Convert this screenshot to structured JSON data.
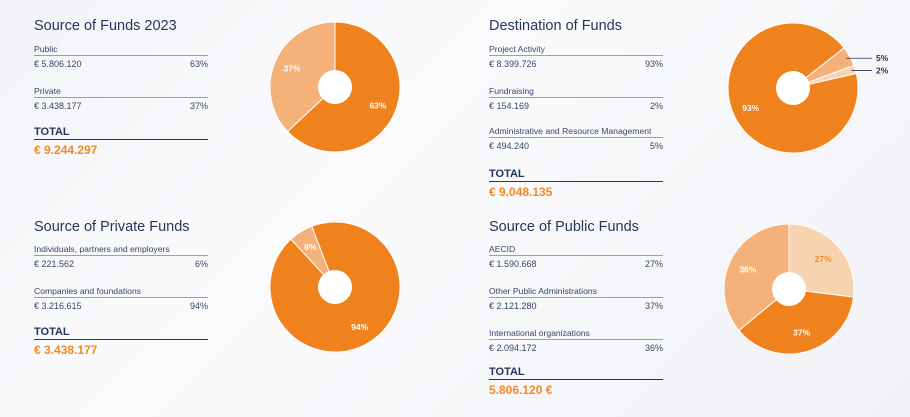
{
  "colors": {
    "dark": "#f0821e",
    "mid": "#f4b27a",
    "light": "#f8d3b0",
    "text_dark": "#24375a",
    "accent": "#f08a24"
  },
  "panels": [
    {
      "title": "Source of Funds 2023",
      "rows": [
        {
          "label": "Public",
          "amount": "€ 5.806.120",
          "pct": "63%"
        },
        {
          "label": "Private",
          "amount": "€ 3.438.177",
          "pct": "37%"
        }
      ],
      "total_label": "TOTAL",
      "total_value": "€ 9.244.297"
    },
    {
      "title": "Destination of  Funds",
      "rows": [
        {
          "label": "Project Activity",
          "amount": "€ 8.399.726",
          "pct": "93%"
        },
        {
          "label": "Fundraising",
          "amount": "€ 154.169",
          "pct": "2%"
        },
        {
          "label": " Administrative and Resource Management",
          "amount": "€ 494.240",
          "pct": "5%"
        }
      ],
      "total_label": "TOTAL",
      "total_value": "€ 9.048.135"
    },
    {
      "title": "Source of Private Funds",
      "rows": [
        {
          "label": "Individuals, partners and employers",
          "amount": "€ 221.562",
          "pct": "6%"
        },
        {
          "label": "Companies and foundations",
          "amount": "€ 3.216.615",
          "pct": "94%"
        }
      ],
      "total_label": "TOTAL",
      "total_value": "€ 3.438.177"
    },
    {
      "title": "Source of Public Funds",
      "rows": [
        {
          "label": "AECID",
          "amount": "€ 1.590.668",
          "pct": "27%"
        },
        {
          "label": "Other Public Administrations",
          "amount": "€ 2.121.280",
          "pct": "37%"
        },
        {
          "label": "International organizations",
          "amount": "€ 2.094.172",
          "pct": "36%"
        }
      ],
      "total_label": "TOTAL",
      "total_value": "5.806.120 €"
    }
  ],
  "chart_data": [
    {
      "type": "pie",
      "title": "Source of Funds 2023",
      "slices": [
        {
          "label": "63%",
          "value": 63,
          "color": "#f0821e"
        },
        {
          "label": "37%",
          "value": 37,
          "color": "#f4b27a"
        }
      ]
    },
    {
      "type": "pie",
      "title": "Destination of  Funds",
      "slices": [
        {
          "label": "93%",
          "value": 93,
          "color": "#f0821e"
        },
        {
          "label": "5%",
          "value": 5,
          "color": "#f4b27a"
        },
        {
          "label": "2%",
          "value": 2,
          "color": "#f8d3b0"
        }
      ]
    },
    {
      "type": "pie",
      "title": "Source of Private Funds",
      "slices": [
        {
          "label": "94%",
          "value": 94,
          "color": "#f0821e"
        },
        {
          "label": "6%",
          "value": 6,
          "color": "#f4b27a"
        }
      ]
    },
    {
      "type": "pie",
      "title": "Source of Public Funds",
      "slices": [
        {
          "label": "27%",
          "value": 27,
          "color": "#f8d3b0"
        },
        {
          "label": "37%",
          "value": 37,
          "color": "#f0821e"
        },
        {
          "label": "36%",
          "value": 36,
          "color": "#f4b27a"
        }
      ]
    }
  ]
}
